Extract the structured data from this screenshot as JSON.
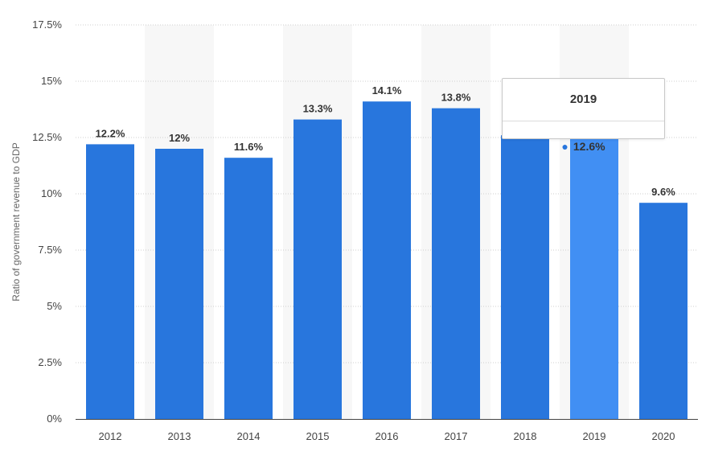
{
  "chart_data": {
    "type": "bar",
    "ylabel": "Ratio of government revenue to GDP",
    "categories": [
      "2012",
      "2013",
      "2014",
      "2015",
      "2016",
      "2017",
      "2018",
      "2019",
      "2020"
    ],
    "values": [
      12.2,
      12.0,
      11.6,
      13.3,
      14.1,
      13.8,
      12.6,
      12.6,
      9.6
    ],
    "data_labels": [
      "12.2%",
      "12%",
      "11.6%",
      "13.3%",
      "14.1%",
      "13.8%",
      "",
      "",
      "9.6%"
    ],
    "ylim": [
      0,
      17.5
    ],
    "yticks": [
      0,
      2.5,
      5,
      7.5,
      10,
      12.5,
      15,
      17.5
    ],
    "ytick_labels": [
      "0%",
      "2.5%",
      "5%",
      "7.5%",
      "10%",
      "12.5%",
      "15%",
      "17.5%"
    ],
    "grid": true,
    "colors": {
      "bar": "#2876dd",
      "bar_highlight": "#418ff3",
      "band": "#f7f7f7",
      "grid": "#cfcfcf"
    },
    "highlight_index": 7
  },
  "tooltip": {
    "title": "2019",
    "value": "12.6%"
  }
}
